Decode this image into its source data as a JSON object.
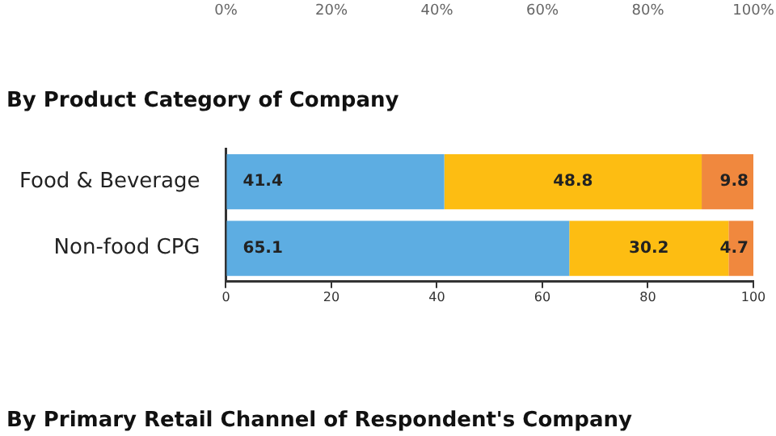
{
  "chart_data": {
    "type": "bar",
    "orientation": "horizontal",
    "stacked": true,
    "title": "By Product Category of Company",
    "categories": [
      "Food & Beverage",
      "Non-food CPG"
    ],
    "series": [
      {
        "color": "#5dade2",
        "values": [
          41.4,
          65.1
        ]
      },
      {
        "color": "#fdbd12",
        "values": [
          48.8,
          30.2
        ]
      },
      {
        "color": "#f0883e",
        "values": [
          9.8,
          4.7
        ]
      }
    ],
    "data_labels": true,
    "grid": false,
    "legend": false,
    "xlim": [
      0,
      100
    ],
    "xticks": [
      0,
      20,
      40,
      60,
      80,
      100
    ],
    "x2lim": [
      0,
      100
    ],
    "x2ticks": [
      {
        "value": 0,
        "label": "0%"
      },
      {
        "value": 20,
        "label": "20%"
      },
      {
        "value": 40,
        "label": "40%"
      },
      {
        "value": 60,
        "label": "60%"
      },
      {
        "value": 80,
        "label": "80%"
      },
      {
        "value": 100,
        "label": "100%"
      }
    ],
    "annotations": [
      "By Primary Retail Channel of Respondent's Company"
    ]
  }
}
